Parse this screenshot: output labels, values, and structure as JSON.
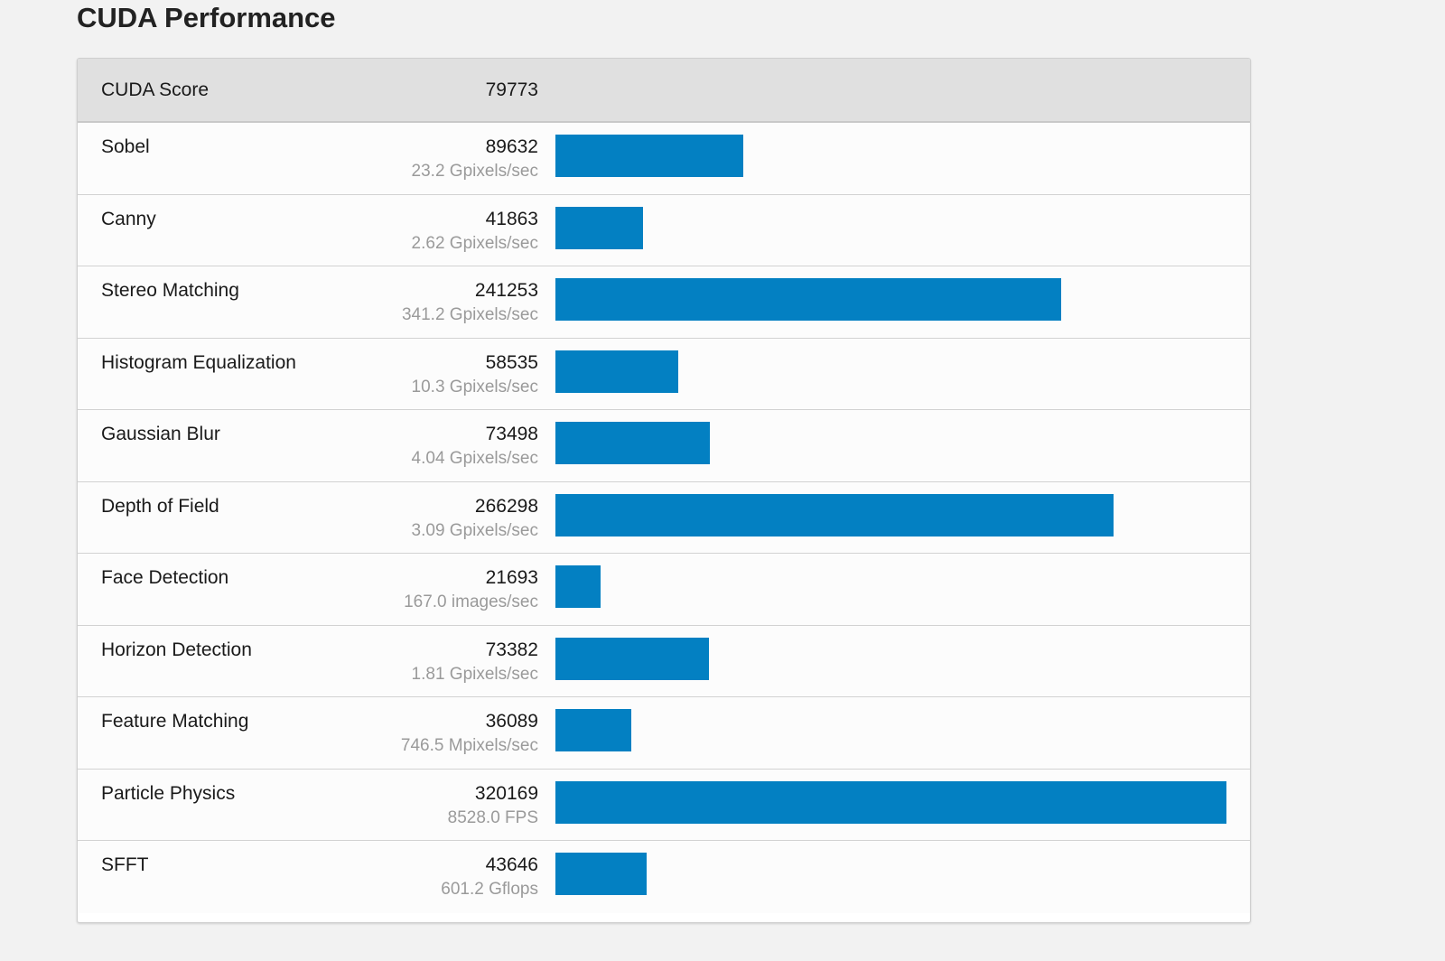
{
  "page_title": "CUDA Performance",
  "colors": {
    "bar": "#0380c2",
    "header_bg": "#e0e0e0",
    "sub_text": "#9a9a9a"
  },
  "header": {
    "label": "CUDA Score",
    "score": "79773"
  },
  "chart_data": {
    "type": "bar",
    "orientation": "horizontal",
    "title": "CUDA Performance",
    "xlim": [
      0,
      320169
    ],
    "categories": [
      "Sobel",
      "Canny",
      "Stereo Matching",
      "Histogram Equalization",
      "Gaussian Blur",
      "Depth of Field",
      "Face Detection",
      "Horizon Detection",
      "Feature Matching",
      "Particle Physics",
      "SFFT"
    ],
    "values": [
      89632,
      41863,
      241253,
      58535,
      73498,
      266298,
      21693,
      73382,
      36089,
      320169,
      43646
    ],
    "rows": [
      {
        "name": "Sobel",
        "score": "89632",
        "value": 89632,
        "sub": "23.2 Gpixels/sec"
      },
      {
        "name": "Canny",
        "score": "41863",
        "value": 41863,
        "sub": "2.62 Gpixels/sec"
      },
      {
        "name": "Stereo Matching",
        "score": "241253",
        "value": 241253,
        "sub": "341.2 Gpixels/sec"
      },
      {
        "name": "Histogram Equalization",
        "score": "58535",
        "value": 58535,
        "sub": "10.3 Gpixels/sec"
      },
      {
        "name": "Gaussian Blur",
        "score": "73498",
        "value": 73498,
        "sub": "4.04 Gpixels/sec"
      },
      {
        "name": "Depth of Field",
        "score": "266298",
        "value": 266298,
        "sub": "3.09 Gpixels/sec"
      },
      {
        "name": "Face Detection",
        "score": "21693",
        "value": 21693,
        "sub": "167.0 images/sec"
      },
      {
        "name": "Horizon Detection",
        "score": "73382",
        "value": 73382,
        "sub": "1.81 Gpixels/sec"
      },
      {
        "name": "Feature Matching",
        "score": "36089",
        "value": 36089,
        "sub": "746.5 Mpixels/sec"
      },
      {
        "name": "Particle Physics",
        "score": "320169",
        "value": 320169,
        "sub": "8528.0 FPS"
      },
      {
        "name": "SFFT",
        "score": "43646",
        "value": 43646,
        "sub": "601.2 Gflops"
      }
    ]
  }
}
